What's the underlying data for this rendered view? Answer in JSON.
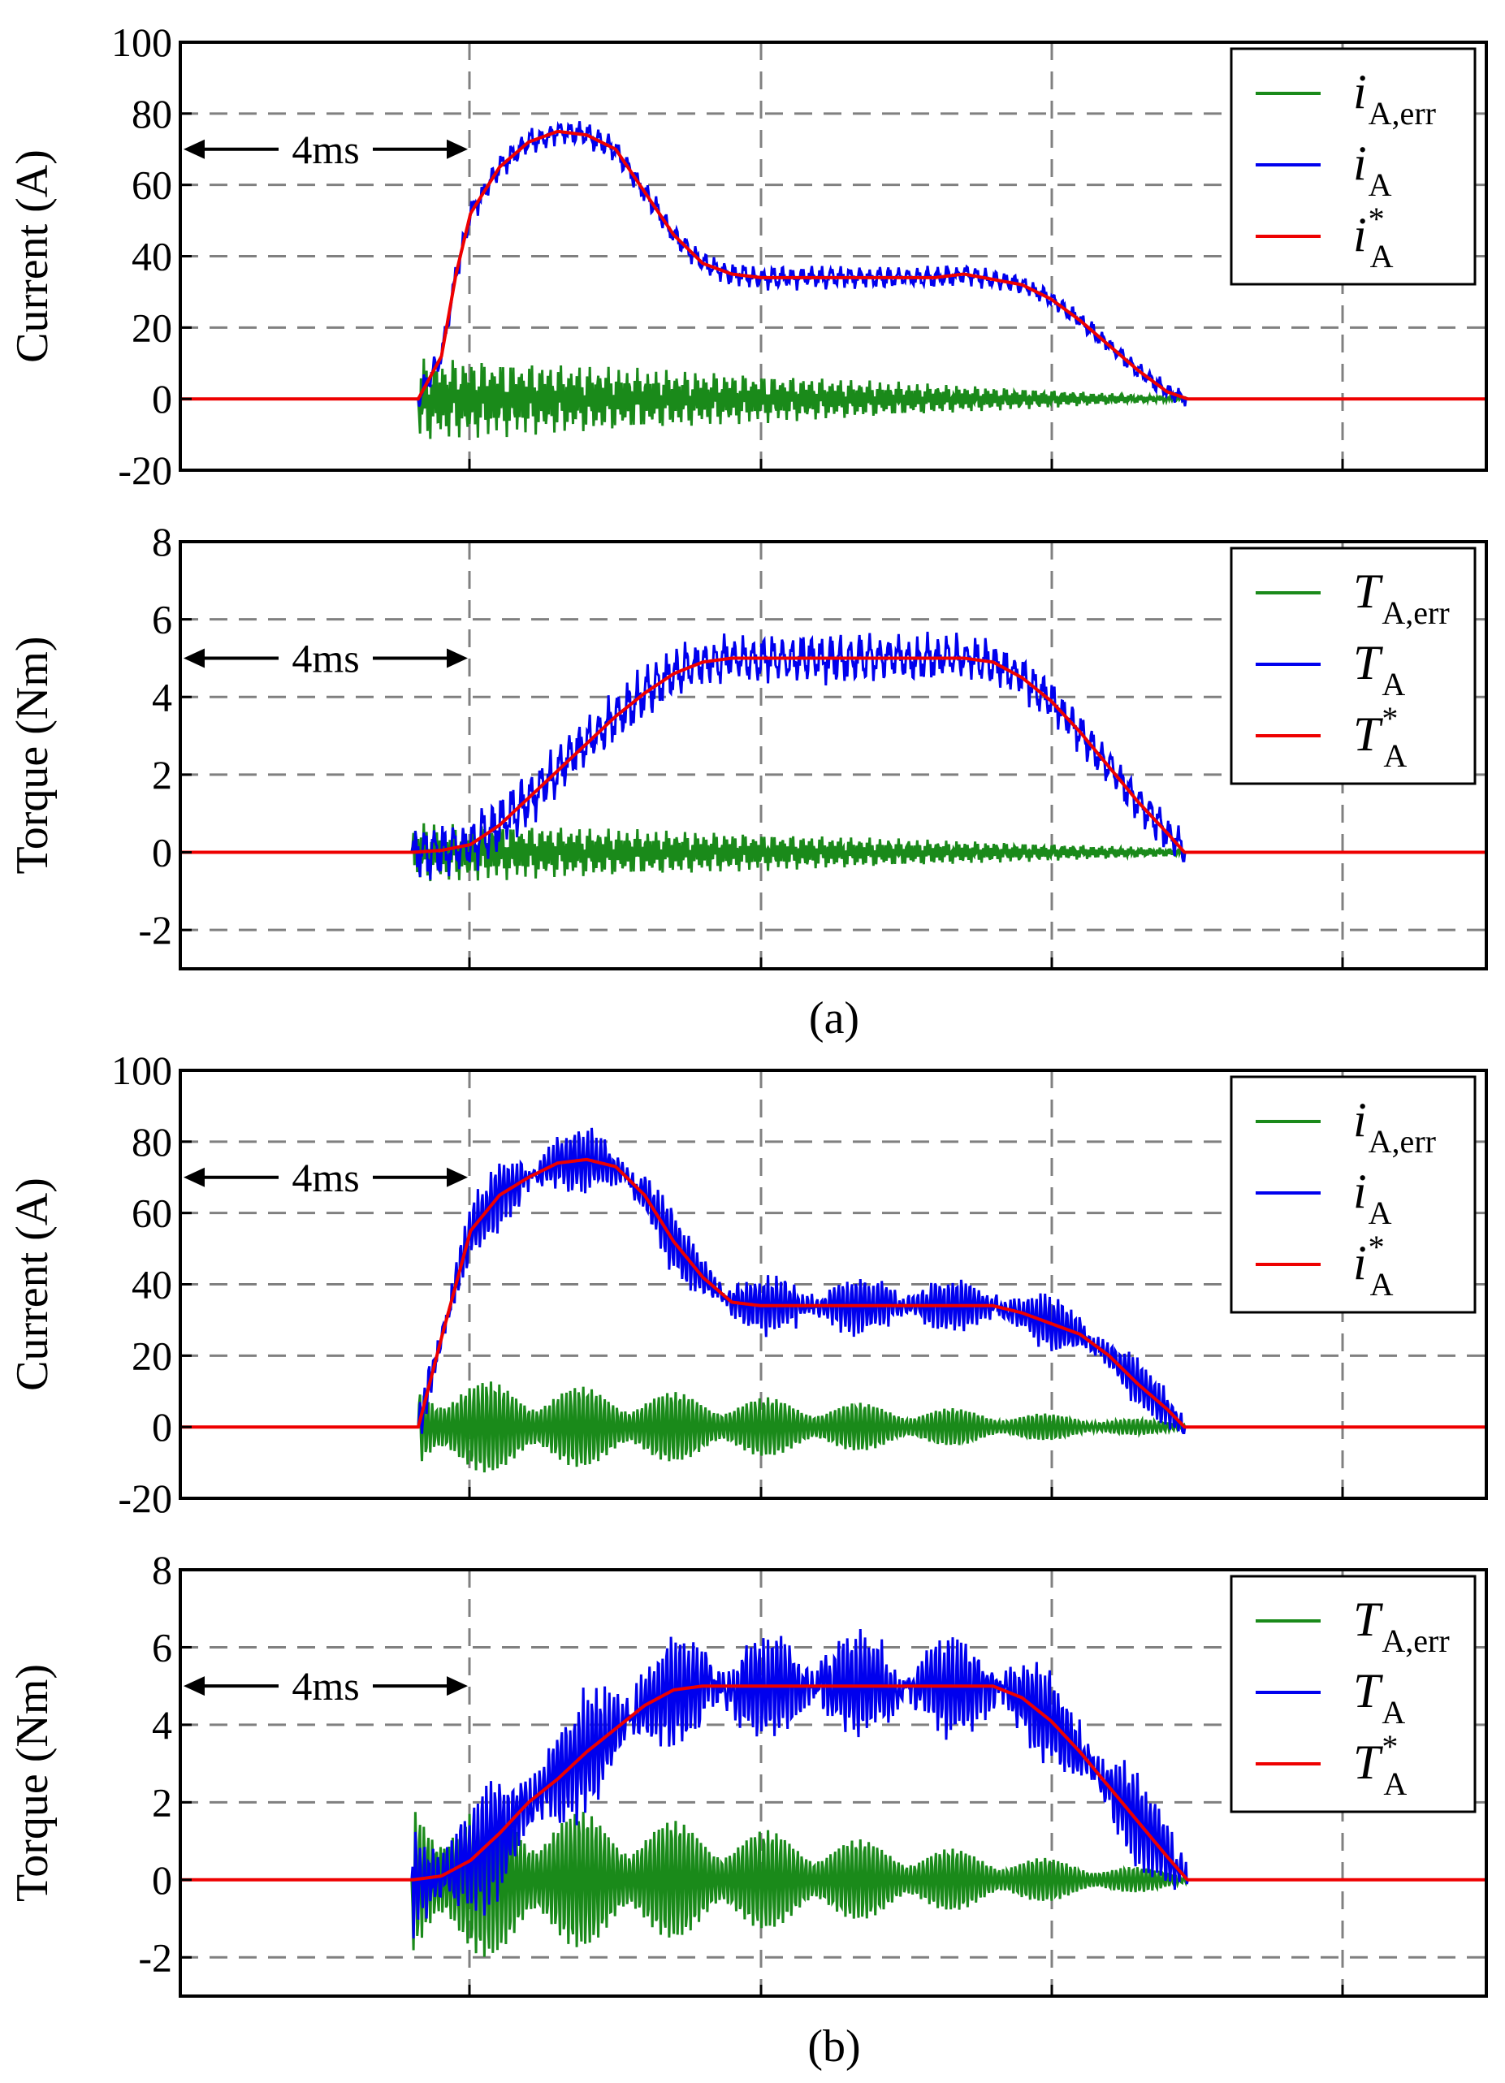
{
  "figure": {
    "caption_a": "(a)",
    "caption_b": "(b)"
  },
  "colors": {
    "err": "#1a8a1a",
    "actual": "#0000ee",
    "ref": "#ee0000"
  },
  "chart_data": [
    {
      "id": "a-current",
      "type": "line",
      "ylabel": "Current (A)",
      "ylim": [
        -20,
        100
      ],
      "yticks": [
        -20,
        0,
        20,
        40,
        60,
        80,
        100
      ],
      "xlim": [
        -9,
        36
      ],
      "annotation": {
        "text": "4ms",
        "y": 70,
        "x_from": -9,
        "x_to": 1
      },
      "legend": [
        {
          "sym": "i",
          "sub": "A,err",
          "sup": ""
        },
        {
          "sym": "i",
          "sub": "A",
          "sup": ""
        },
        {
          "sym": "i",
          "sub": "A",
          "sup": "*"
        }
      ],
      "ref_profile": [
        [
          -9,
          0
        ],
        [
          -0.8,
          0
        ],
        [
          0,
          12
        ],
        [
          0.5,
          35
        ],
        [
          1,
          52
        ],
        [
          2,
          65
        ],
        [
          3,
          72
        ],
        [
          4,
          75
        ],
        [
          5,
          74
        ],
        [
          6,
          70
        ],
        [
          7,
          58
        ],
        [
          8,
          46
        ],
        [
          9,
          38
        ],
        [
          10,
          35
        ],
        [
          11,
          34
        ],
        [
          13,
          34
        ],
        [
          15,
          34
        ],
        [
          17,
          34
        ],
        [
          18,
          35
        ],
        [
          20,
          32
        ],
        [
          21,
          28
        ],
        [
          22,
          22
        ],
        [
          23,
          15
        ],
        [
          24,
          8
        ],
        [
          25,
          2
        ],
        [
          25.7,
          0
        ],
        [
          36,
          0
        ]
      ],
      "actual_ripple": {
        "amp": 3.5,
        "freq": 1.0,
        "seed": 3
      },
      "err_decay": {
        "amp0": 12,
        "amp_end": 0.5
      }
    },
    {
      "id": "a-torque",
      "type": "line",
      "ylabel": "Torque (Nm)",
      "ylim": [
        -3,
        8
      ],
      "yticks": [
        -2,
        0,
        2,
        4,
        6,
        8
      ],
      "xlim": [
        -9,
        36
      ],
      "annotation": {
        "text": "4ms",
        "y": 5,
        "x_from": -9,
        "x_to": 1
      },
      "legend": [
        {
          "sym": "T",
          "sub": "A,err",
          "sup": ""
        },
        {
          "sym": "T",
          "sub": "A",
          "sup": ""
        },
        {
          "sym": "T",
          "sub": "A",
          "sup": "*"
        }
      ],
      "ref_profile": [
        [
          -9,
          0
        ],
        [
          -1,
          0
        ],
        [
          0,
          0.05
        ],
        [
          1,
          0.2
        ],
        [
          2,
          0.7
        ],
        [
          3,
          1.4
        ],
        [
          4,
          2.1
        ],
        [
          5,
          2.8
        ],
        [
          6,
          3.5
        ],
        [
          7,
          4.1
        ],
        [
          8,
          4.6
        ],
        [
          9,
          4.9
        ],
        [
          10,
          5
        ],
        [
          14,
          5
        ],
        [
          18,
          5
        ],
        [
          19,
          4.9
        ],
        [
          20,
          4.5
        ],
        [
          21,
          3.9
        ],
        [
          22,
          3.1
        ],
        [
          23,
          2.2
        ],
        [
          24,
          1.3
        ],
        [
          25,
          0.5
        ],
        [
          25.6,
          0
        ],
        [
          36,
          0
        ]
      ],
      "actual_ripple": {
        "amp": 0.7,
        "freq": 1.0,
        "seed": 7
      },
      "err_decay": {
        "amp0": 0.8,
        "amp_end": 0.1
      }
    },
    {
      "id": "b-current",
      "type": "line",
      "ylabel": "Current (A)",
      "ylim": [
        -20,
        100
      ],
      "yticks": [
        -20,
        0,
        20,
        40,
        60,
        80,
        100
      ],
      "xlim": [
        -9,
        36
      ],
      "annotation": {
        "text": "4ms",
        "y": 70,
        "x_from": -9,
        "x_to": 1
      },
      "legend": [
        {
          "sym": "i",
          "sub": "A,err",
          "sup": ""
        },
        {
          "sym": "i",
          "sub": "A",
          "sup": ""
        },
        {
          "sym": "i",
          "sub": "A",
          "sup": "*"
        }
      ],
      "ref_profile": [
        [
          -9,
          0
        ],
        [
          -0.8,
          0
        ],
        [
          0,
          25
        ],
        [
          1,
          55
        ],
        [
          2,
          65
        ],
        [
          3,
          70
        ],
        [
          4,
          74
        ],
        [
          5,
          75
        ],
        [
          6,
          73
        ],
        [
          7,
          65
        ],
        [
          8,
          52
        ],
        [
          9,
          42
        ],
        [
          10,
          35
        ],
        [
          11,
          34
        ],
        [
          13,
          34
        ],
        [
          15,
          34
        ],
        [
          17,
          34
        ],
        [
          19,
          34
        ],
        [
          20,
          32
        ],
        [
          22,
          26
        ],
        [
          23,
          20
        ],
        [
          24,
          12
        ],
        [
          25,
          5
        ],
        [
          25.6,
          0
        ],
        [
          36,
          0
        ]
      ],
      "actual_ripple": {
        "amp": 9,
        "freq": 2.2,
        "seed": 11
      },
      "err_decay": {
        "amp0": 14,
        "amp_end": 1.5
      }
    },
    {
      "id": "b-torque",
      "type": "line",
      "ylabel": "Torque (Nm)",
      "ylim": [
        -3,
        8
      ],
      "yticks": [
        -2,
        0,
        2,
        4,
        6,
        8
      ],
      "xlim": [
        -9,
        36
      ],
      "annotation": {
        "text": "4ms",
        "y": 5,
        "x_from": -9,
        "x_to": 1
      },
      "legend": [
        {
          "sym": "T",
          "sub": "A,err",
          "sup": ""
        },
        {
          "sym": "T",
          "sub": "A",
          "sup": ""
        },
        {
          "sym": "T",
          "sub": "A",
          "sup": "*"
        }
      ],
      "ref_profile": [
        [
          -9,
          0
        ],
        [
          -1,
          0
        ],
        [
          0,
          0.1
        ],
        [
          1,
          0.5
        ],
        [
          2,
          1.2
        ],
        [
          3,
          2
        ],
        [
          4,
          2.6
        ],
        [
          5,
          3.3
        ],
        [
          6,
          3.9
        ],
        [
          7,
          4.5
        ],
        [
          8,
          4.9
        ],
        [
          9,
          5
        ],
        [
          14,
          5
        ],
        [
          19,
          5
        ],
        [
          20,
          4.7
        ],
        [
          21,
          4.1
        ],
        [
          22,
          3.3
        ],
        [
          23,
          2.4
        ],
        [
          24,
          1.5
        ],
        [
          25,
          0.6
        ],
        [
          25.7,
          0
        ],
        [
          36,
          0
        ]
      ],
      "actual_ripple": {
        "amp": 1.5,
        "freq": 2.2,
        "seed": 17
      },
      "err_decay": {
        "amp0": 2.2,
        "amp_end": 0.2
      }
    }
  ]
}
